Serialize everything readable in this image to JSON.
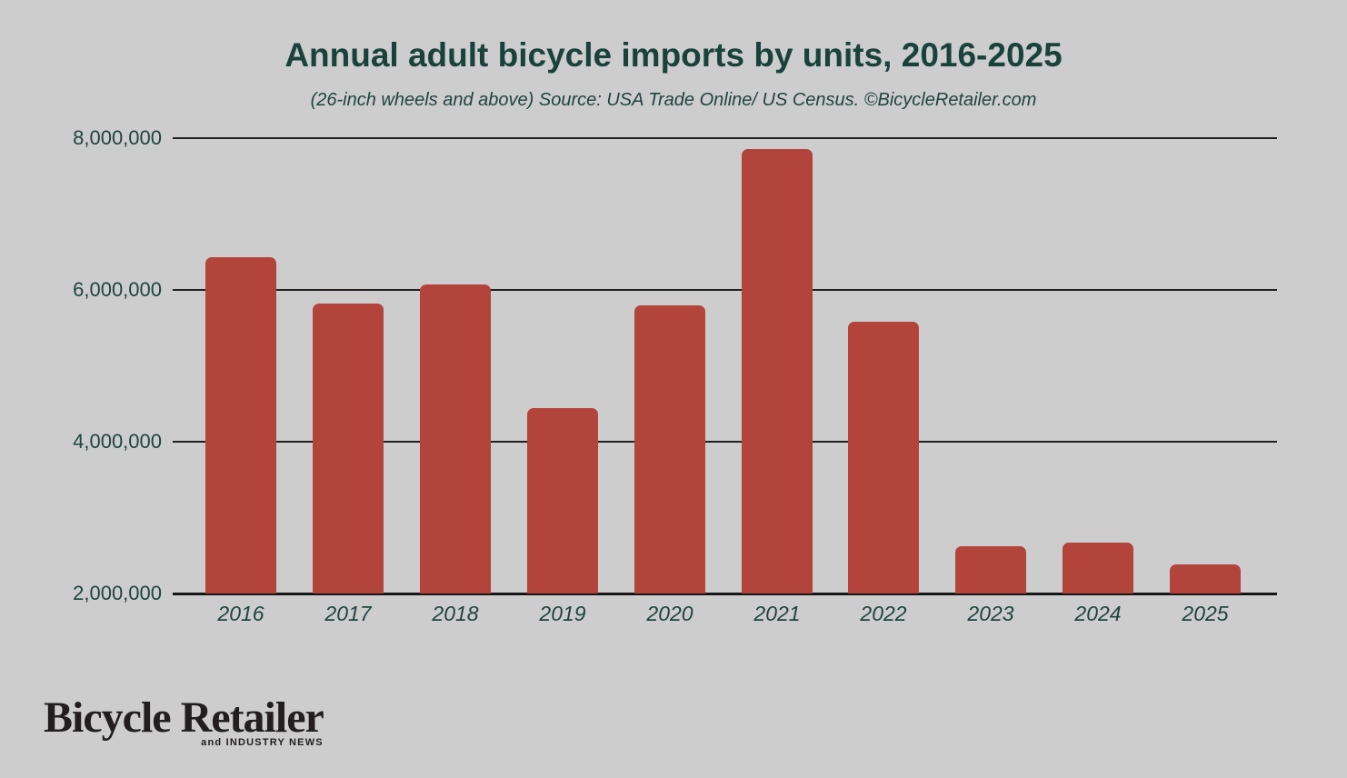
{
  "page": {
    "background_color": "#cdcdcd"
  },
  "header": {
    "title": "Annual adult bicycle imports by units, 2016-2025",
    "subtitle": "(26-inch wheels and above) Source: USA Trade Online/ US Census. ©BicycleRetailer.com"
  },
  "chart_data": {
    "type": "bar",
    "title": "Annual adult bicycle imports by units, 2016-2025",
    "subtitle": "(26-inch wheels and above) Source: USA Trade Online/ US Census. ©BicycleRetailer.com",
    "categories": [
      "2016",
      "2017",
      "2018",
      "2019",
      "2020",
      "2021",
      "2022",
      "2023",
      "2024",
      "2025"
    ],
    "values": [
      6430000,
      5820000,
      6070000,
      4440000,
      5800000,
      7860000,
      5580000,
      2620000,
      2670000,
      2380000
    ],
    "xlabel": "",
    "ylabel": "",
    "ylim": [
      2000000,
      8000000
    ],
    "yticks": [
      {
        "value": 8000000,
        "label": "8,000,000"
      },
      {
        "value": 6000000,
        "label": "6,000,000"
      },
      {
        "value": 4000000,
        "label": "4,000,000"
      },
      {
        "value": 2000000,
        "label": "2,000,000"
      }
    ],
    "grid": "horizontal",
    "legend": "none",
    "bar_color": "#b2443c",
    "gridline_color": "#202020",
    "text_color": "#1f4440",
    "title_color": "#1a423d"
  },
  "logo": {
    "name": "Bicycle Retailer",
    "tagline_and": "and",
    "tagline_rest": "INDUSTRY NEWS"
  }
}
